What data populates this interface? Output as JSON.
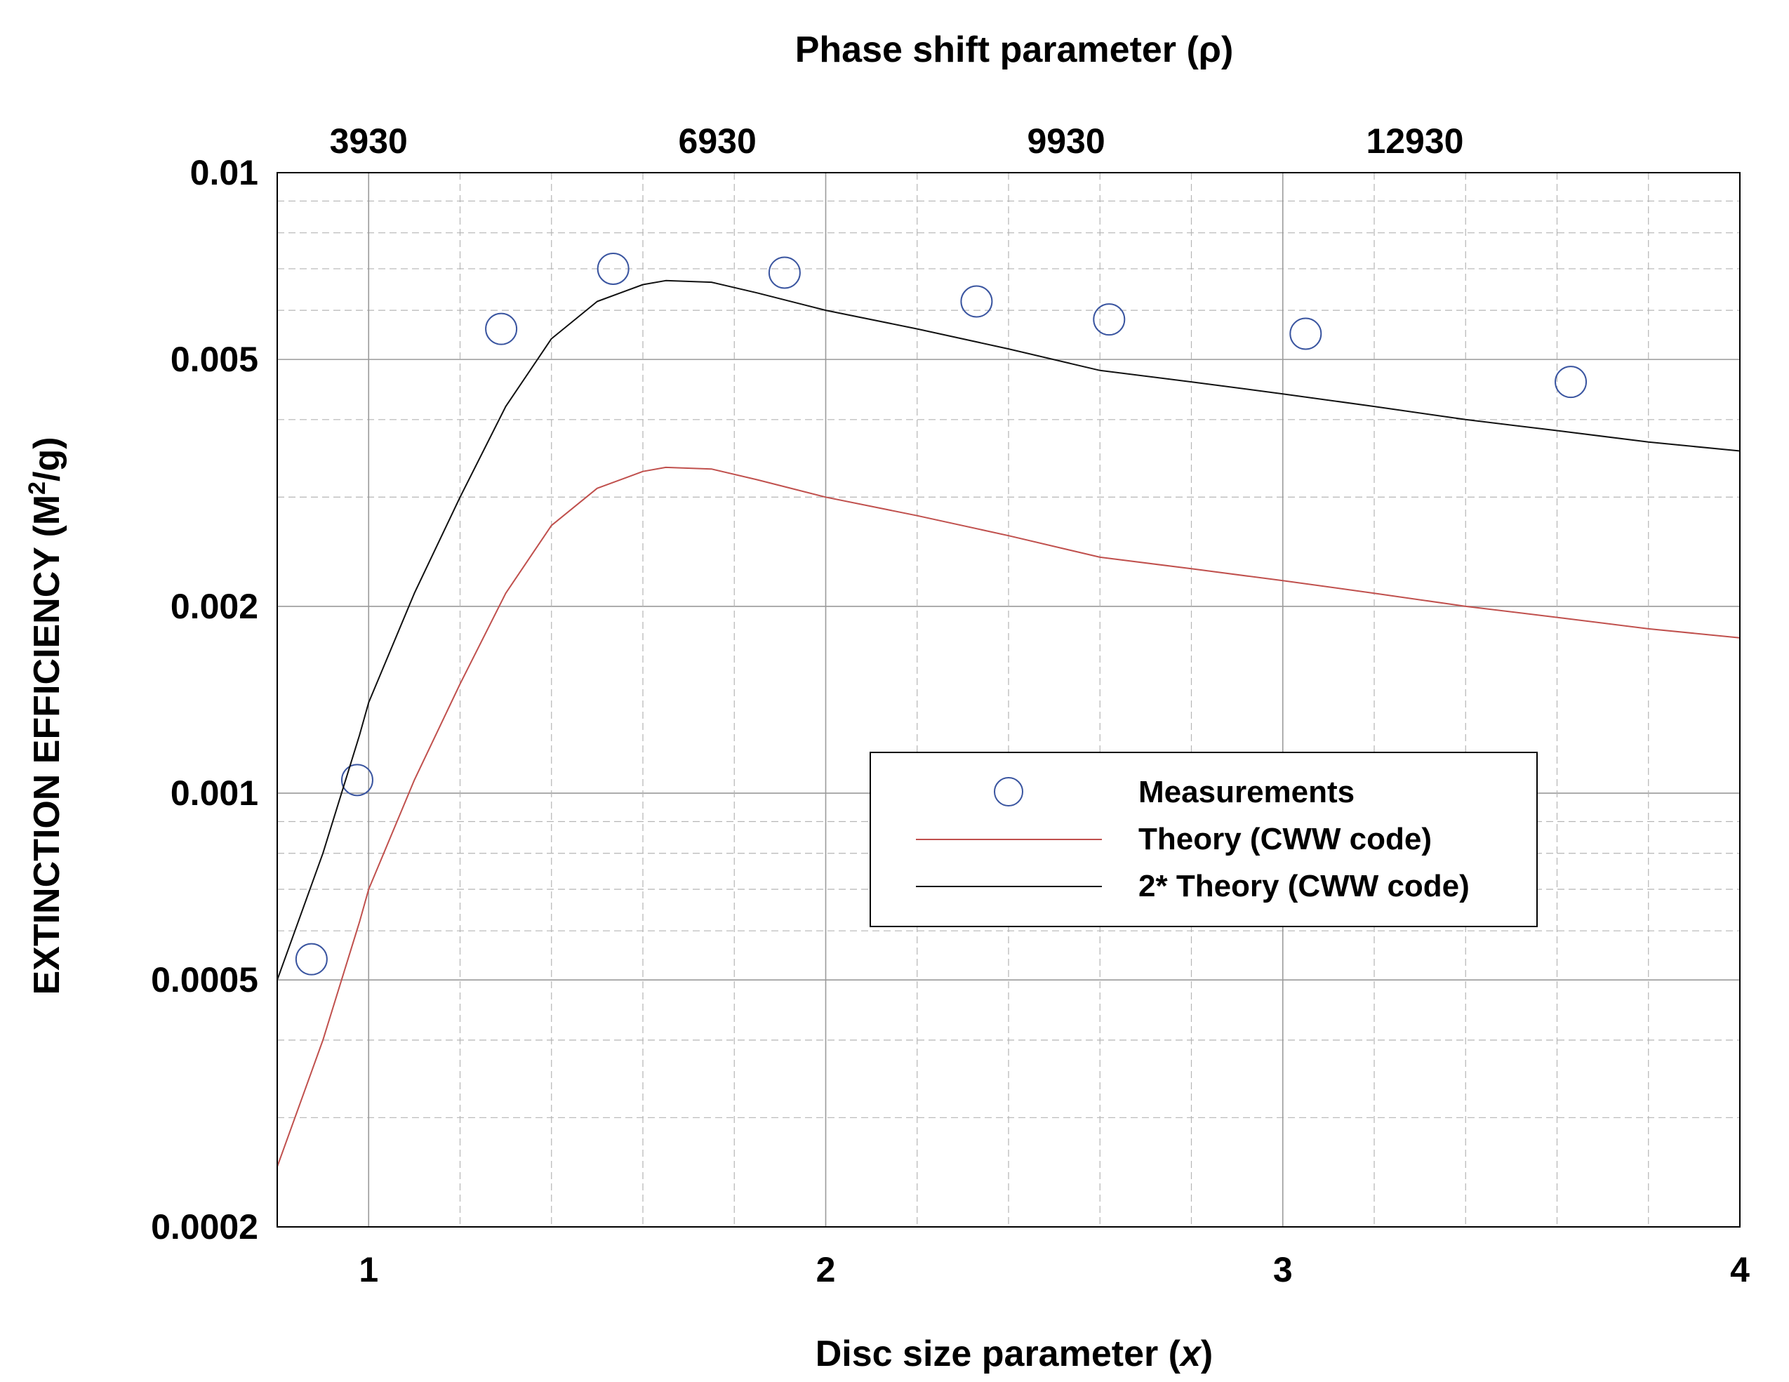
{
  "chart_data": {
    "type": "line",
    "top_axis_title": "Phase shift parameter (ρ)",
    "xlabel": "Disc size parameter (x)",
    "ylabel": "EXTINCTION EFFICIENCY  (M²/g)",
    "ylabel_parts": {
      "main": "EXTINCTION EFFICIENCY  (M",
      "sup": "2",
      "tail": "/g)"
    },
    "xlabel_parts": {
      "main": "Disc size parameter (",
      "var": "x",
      "tail": ")"
    },
    "y_scale": "log",
    "xlim": [
      0.8,
      4.0
    ],
    "ylim": [
      0.0002,
      0.01
    ],
    "x_ticks": [
      {
        "value": 1,
        "label": "1"
      },
      {
        "value": 2,
        "label": "2"
      },
      {
        "value": 3,
        "label": "3"
      },
      {
        "value": 4,
        "label": "4"
      }
    ],
    "top_ticks": [
      {
        "x": 1.0,
        "label": "3930"
      },
      {
        "x": 1.763,
        "label": "6930"
      },
      {
        "x": 2.526,
        "label": "9930"
      },
      {
        "x": 3.289,
        "label": "12930"
      }
    ],
    "y_ticks": [
      {
        "value": 0.01,
        "label": "0.01"
      },
      {
        "value": 0.005,
        "label": "0.005"
      },
      {
        "value": 0.002,
        "label": "0.002"
      },
      {
        "value": 0.001,
        "label": "0.001"
      },
      {
        "value": 0.0005,
        "label": "0.0005"
      },
      {
        "value": 0.0002,
        "label": "0.0002"
      }
    ],
    "grid": true,
    "legend_position": "center-right",
    "series": [
      {
        "name": "Measurements",
        "style": "markers",
        "color": "#3a55a0",
        "x": [
          0.875,
          0.975,
          1.29,
          1.535,
          1.91,
          2.33,
          2.62,
          3.05,
          3.63
        ],
        "values": [
          0.00054,
          0.00105,
          0.0056,
          0.007,
          0.0069,
          0.0062,
          0.0058,
          0.0055,
          0.0046
        ]
      },
      {
        "name": "Theory (CWW code)",
        "style": "line",
        "color": "#c0504d",
        "x": [
          0.8,
          0.9,
          0.98,
          1.0,
          1.1,
          1.2,
          1.3,
          1.4,
          1.5,
          1.6,
          1.65,
          1.75,
          1.85,
          2.0,
          2.2,
          2.4,
          2.6,
          2.8,
          3.0,
          3.2,
          3.4,
          3.6,
          3.8,
          4.0
        ],
        "values": [
          0.00025,
          0.0004,
          0.00062,
          0.0007,
          0.00105,
          0.0015,
          0.0021,
          0.0027,
          0.0031,
          0.0033,
          0.00335,
          0.00333,
          0.0032,
          0.003,
          0.0028,
          0.0026,
          0.0024,
          0.0023,
          0.0022,
          0.0021,
          0.002,
          0.00192,
          0.00184,
          0.00178
        ]
      },
      {
        "name": "2* Theory (CWW code)",
        "style": "line",
        "color": "#111111",
        "x": [
          0.8,
          0.9,
          0.98,
          1.0,
          1.1,
          1.2,
          1.3,
          1.4,
          1.5,
          1.6,
          1.65,
          1.75,
          1.85,
          2.0,
          2.2,
          2.4,
          2.6,
          2.8,
          3.0,
          3.2,
          3.4,
          3.6,
          3.8,
          4.0
        ],
        "values": [
          0.0005,
          0.0008,
          0.00124,
          0.0014,
          0.0021,
          0.003,
          0.0042,
          0.0054,
          0.0062,
          0.0066,
          0.0067,
          0.00666,
          0.0064,
          0.006,
          0.0056,
          0.0052,
          0.0048,
          0.0046,
          0.0044,
          0.0042,
          0.004,
          0.00384,
          0.00368,
          0.00356
        ]
      }
    ]
  }
}
